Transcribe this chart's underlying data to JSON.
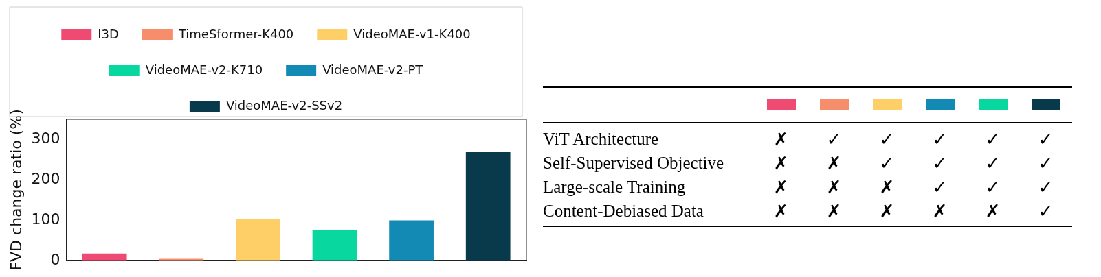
{
  "chart_data": [
    {
      "type": "bar",
      "ylabel": "FVD change ratio (%)",
      "categories": [
        null,
        null,
        null,
        null,
        null,
        null
      ],
      "ylim": [
        0,
        350
      ],
      "yticks": [
        0,
        100,
        200,
        300
      ],
      "legend": "top",
      "grid": false,
      "series": [
        {
          "name": "I3D",
          "color": "#ef4b72",
          "values": [
            17,
            null,
            null,
            null,
            null,
            null
          ]
        },
        {
          "name": "TimeSformer-K400",
          "color": "#f78e6b",
          "values": [
            null,
            4,
            null,
            null,
            null,
            null
          ]
        },
        {
          "name": "VideoMAE-v1-K400",
          "color": "#fecf67",
          "values": [
            null,
            null,
            102,
            null,
            null,
            null
          ]
        },
        {
          "name": "VideoMAE-v2-K710",
          "color": "#08d7a0",
          "values": [
            null,
            null,
            null,
            76,
            null,
            null
          ]
        },
        {
          "name": "VideoMAE-v2-PT",
          "color": "#128ab3",
          "values": [
            null,
            null,
            null,
            null,
            99,
            null
          ]
        },
        {
          "name": "VideoMAE-v2-SSv2",
          "color": "#083a4b",
          "values": [
            null,
            null,
            null,
            null,
            null,
            269
          ]
        }
      ]
    },
    {
      "type": "other",
      "colors": [
        "#ef4b72",
        "#f78e6b",
        "#fecf67",
        "#128ab3",
        "#08d7a0",
        "#083a4b"
      ],
      "y_categories": [
        "ViT Architecture",
        "Self-Supervised Objective",
        "Large-scale Training",
        "Content-Debiased Data"
      ],
      "cell_labels": [
        [
          "✗",
          "✓",
          "✓",
          "✓",
          "✓",
          "✓"
        ],
        [
          "✗",
          "✗",
          "✓",
          "✓",
          "✓",
          "✓"
        ],
        [
          "✗",
          "✗",
          "✗",
          "✓",
          "✓",
          "✓"
        ],
        [
          "✗",
          "✗",
          "✗",
          "✗",
          "✗",
          "✓"
        ]
      ]
    }
  ]
}
